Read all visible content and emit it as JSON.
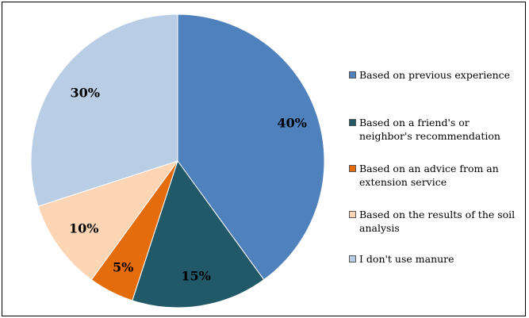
{
  "chart_data": {
    "type": "pie",
    "start_angle_deg": 0,
    "direction": "clockwise",
    "slices": [
      {
        "label": "Based on previous experience",
        "value": 40,
        "value_label": "40%",
        "color": "#4F81BD"
      },
      {
        "label": "Based on a friend's or neighbor's recommendation",
        "value": 15,
        "value_label": "15%",
        "color": "#215968"
      },
      {
        "label": "Based on an advice from an extension service",
        "value": 5,
        "value_label": "5%",
        "color": "#E46C0A"
      },
      {
        "label": "Based on the results of the soil analysis",
        "value": 10,
        "value_label": "10%",
        "color": "#FCD5B5"
      },
      {
        "label": "I don't use manure",
        "value": 30,
        "value_label": "30%",
        "color": "#B9CDE5"
      }
    ],
    "legend_position": "right",
    "border": true
  }
}
